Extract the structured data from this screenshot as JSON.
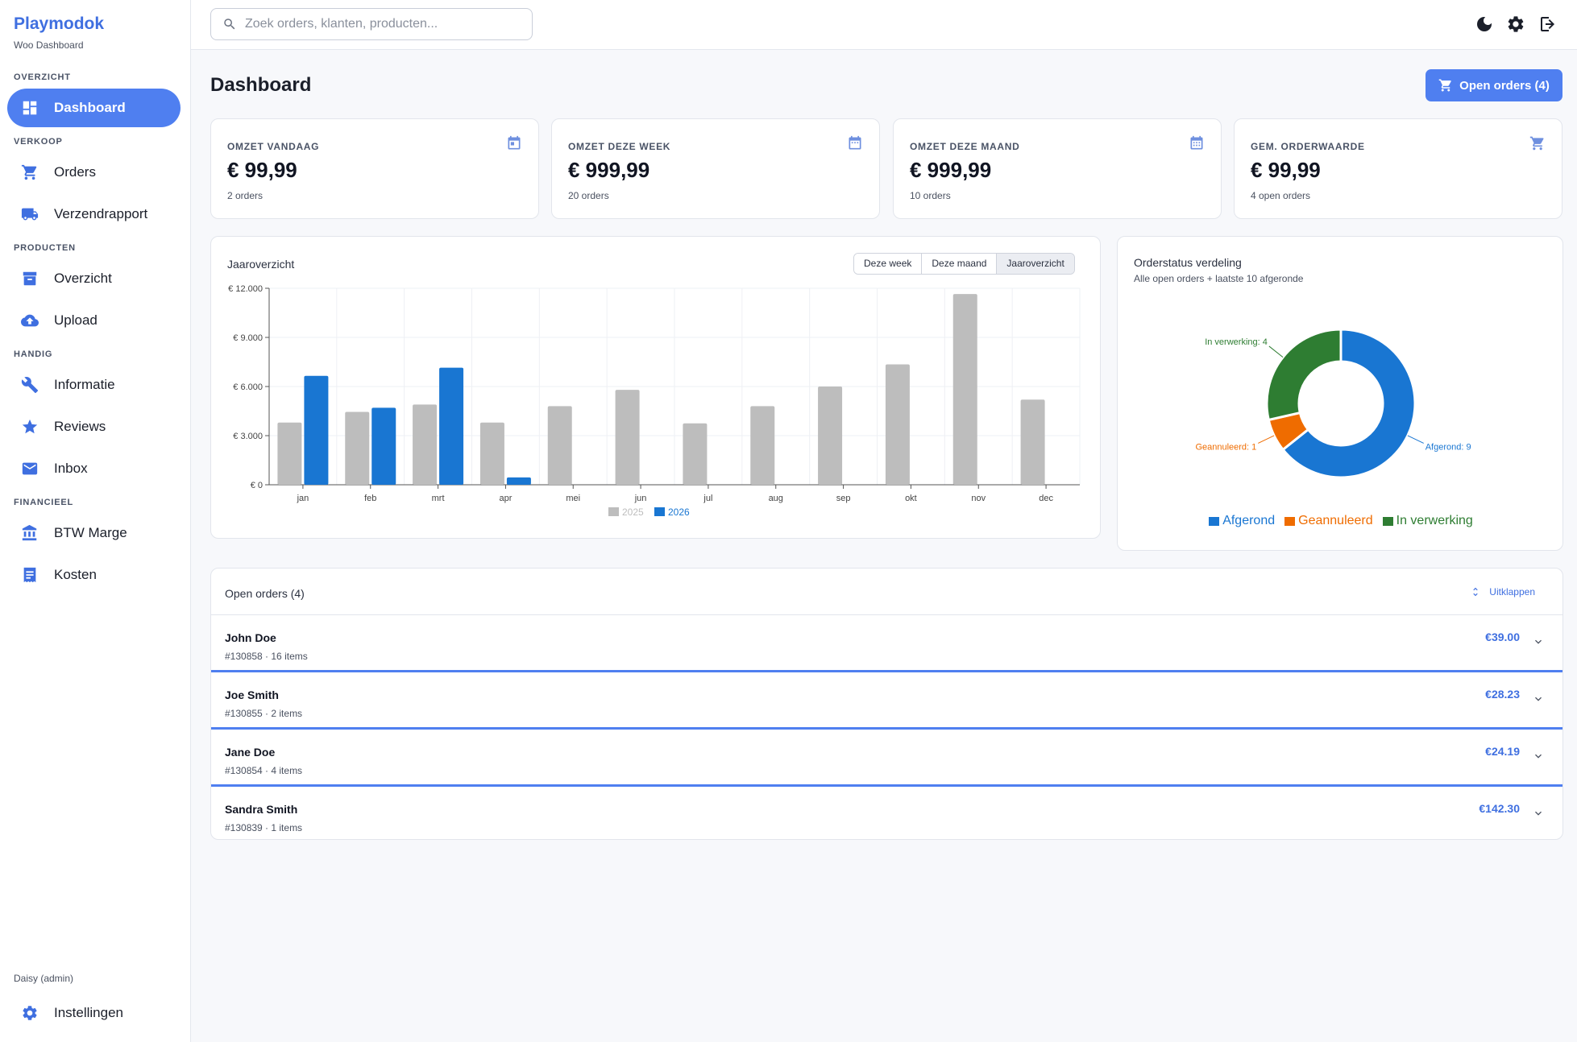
{
  "brand": {
    "name": "Playmodok",
    "subtitle": "Woo Dashboard"
  },
  "sidebar": {
    "sections": [
      {
        "label": "OVERZICHT",
        "items": [
          {
            "label": "Dashboard",
            "icon": "dashboard-icon",
            "active": true
          }
        ]
      },
      {
        "label": "VERKOOP",
        "items": [
          {
            "label": "Orders",
            "icon": "cart-icon"
          },
          {
            "label": "Verzendrapport",
            "icon": "truck-icon"
          }
        ]
      },
      {
        "label": "PRODUCTEN",
        "items": [
          {
            "label": "Overzicht",
            "icon": "archive-icon"
          },
          {
            "label": "Upload",
            "icon": "cloud-upload-icon"
          }
        ]
      },
      {
        "label": "HANDIG",
        "items": [
          {
            "label": "Informatie",
            "icon": "wrench-icon"
          },
          {
            "label": "Reviews",
            "icon": "star-icon"
          },
          {
            "label": "Inbox",
            "icon": "mail-icon"
          }
        ]
      },
      {
        "label": "FINANCIEEL",
        "items": [
          {
            "label": "BTW Marge",
            "icon": "bank-icon"
          },
          {
            "label": "Kosten",
            "icon": "receipt-icon"
          }
        ]
      }
    ],
    "user": "Daisy (admin)",
    "settings_label": "Instellingen"
  },
  "topbar": {
    "search_placeholder": "Zoek orders, klanten, producten...",
    "icons": [
      "dark-mode-icon",
      "gear-icon",
      "logout-icon"
    ]
  },
  "header": {
    "title": "Dashboard",
    "open_orders_button": "Open orders (4)"
  },
  "stats": [
    {
      "label": "OMZET VANDAAG",
      "value": "€ 99,99",
      "sub": "2 orders",
      "icon": "calendar-today-icon"
    },
    {
      "label": "OMZET DEZE WEEK",
      "value": "€ 999,99",
      "sub": "20 orders",
      "icon": "calendar-week-icon"
    },
    {
      "label": "OMZET DEZE MAAND",
      "value": "€ 999,99",
      "sub": "10 orders",
      "icon": "calendar-month-icon"
    },
    {
      "label": "GEM. ORDERWAARDE",
      "value": "€ 99,99",
      "sub": "4 open orders",
      "icon": "cart-icon"
    }
  ],
  "year_chart": {
    "title": "Jaaroverzicht",
    "toggle": [
      "Deze week",
      "Deze maand",
      "Jaaroverzicht"
    ],
    "toggle_selected": "Jaaroverzicht"
  },
  "status_chart": {
    "title": "Orderstatus verdeling",
    "subtitle": "Alle open orders + laatste 10 afgeronde"
  },
  "orders": {
    "title": "Open orders (4)",
    "collapse_label": "Uitklappen",
    "rows": [
      {
        "name": "John Doe",
        "meta": "#130858 · 16 items",
        "price": "€39.00"
      },
      {
        "name": "Joe Smith",
        "meta": "#130855 · 2 items",
        "price": "€28.23"
      },
      {
        "name": "Jane Doe",
        "meta": "#130854 · 4 items",
        "price": "€24.19"
      },
      {
        "name": "Sandra Smith",
        "meta": "#130839 · 1 items",
        "price": "€142.30"
      }
    ]
  },
  "colors": {
    "accent": "#4f7ff0",
    "series_2025": "#bdbdbd",
    "series_2026": "#1976d2",
    "afgerond": "#1976d2",
    "geannuleerd": "#ef6c00",
    "in_verwerking": "#2e7d32"
  },
  "chart_data": [
    {
      "type": "bar",
      "title": "Jaaroverzicht",
      "categories": [
        "jan",
        "feb",
        "mrt",
        "apr",
        "mei",
        "jun",
        "jul",
        "aug",
        "sep",
        "okt",
        "nov",
        "dec"
      ],
      "series": [
        {
          "name": "2025",
          "color": "#bdbdbd",
          "values": [
            3800,
            4450,
            4900,
            3800,
            4800,
            5800,
            3750,
            4800,
            6000,
            7350,
            11650,
            5200
          ]
        },
        {
          "name": "2026",
          "color": "#1976d2",
          "values": [
            6650,
            4700,
            7150,
            450,
            null,
            null,
            null,
            null,
            null,
            null,
            null,
            null
          ]
        }
      ],
      "yticks": [
        "€ 0",
        "€ 3.000",
        "€ 6.000",
        "€ 9.000",
        "€ 12.000"
      ],
      "ylim": [
        0,
        12000
      ],
      "grid": true,
      "legend": "bottom"
    },
    {
      "type": "pie",
      "title": "Orderstatus verdeling",
      "slices": [
        {
          "label": "Afgerond",
          "value": 9,
          "callout": "Afgerond: 9",
          "color": "#1976d2"
        },
        {
          "label": "Geannuleerd",
          "value": 1,
          "callout": "Geannuleerd: 1",
          "color": "#ef6c00"
        },
        {
          "label": "In verwerking",
          "value": 4,
          "callout": "In verwerking: 4",
          "color": "#2e7d32"
        }
      ],
      "donut": true,
      "legend": "bottom"
    }
  ]
}
